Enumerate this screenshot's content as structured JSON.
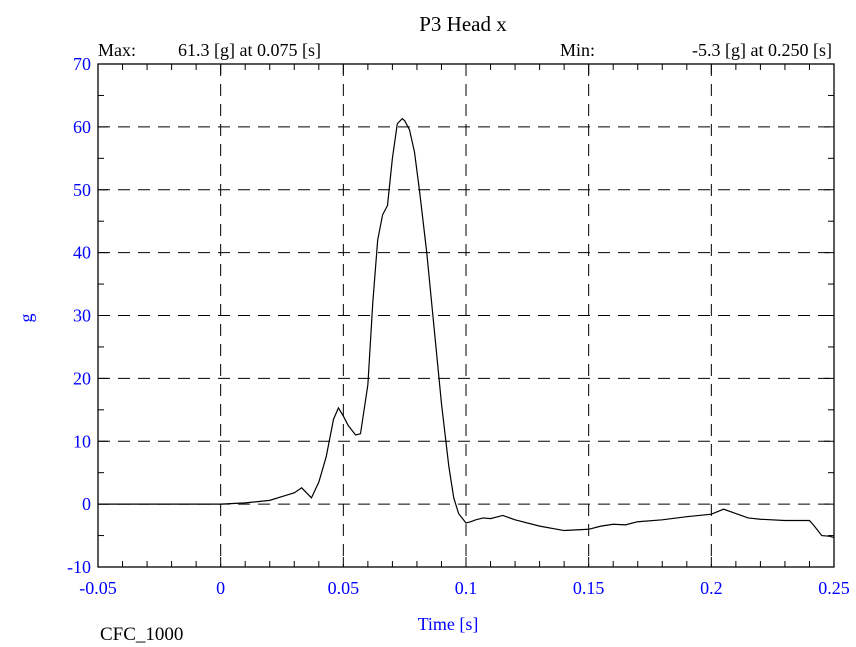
{
  "chart_data": {
    "type": "line",
    "title": "P3 Head x",
    "max_label": "Max:",
    "max_text": "61.3 [g] at 0.075 [s]",
    "min_label": "Min:",
    "min_text": "-5.3 [g] at 0.250 [s]",
    "xlabel": "Time [s]",
    "ylabel": "g",
    "footer": "CFC_1000",
    "xlim": [
      -0.05,
      0.25
    ],
    "ylim": [
      -10,
      70
    ],
    "xticks": [
      -0.05,
      0,
      0.05,
      0.1,
      0.15,
      0.2,
      0.25
    ],
    "xtick_labels": [
      "-0.05",
      "0",
      "0.05",
      "0.1",
      "0.15",
      "0.2",
      "0.25"
    ],
    "yticks": [
      -10,
      0,
      10,
      20,
      30,
      40,
      50,
      60,
      70
    ],
    "ytick_labels": [
      "-10",
      "0",
      "10",
      "20",
      "30",
      "40",
      "50",
      "60",
      "70"
    ],
    "grid": true,
    "colors": {
      "tick_labels": "#0000ff",
      "line": "#000000",
      "grid": "#000000"
    },
    "series": [
      {
        "x": [
          -0.05,
          -0.03,
          -0.01,
          0.0,
          0.01,
          0.02,
          0.025,
          0.03,
          0.033,
          0.035,
          0.037,
          0.04,
          0.043,
          0.046,
          0.048,
          0.05,
          0.052,
          0.055,
          0.057,
          0.06,
          0.062,
          0.064,
          0.066,
          0.068,
          0.07,
          0.072,
          0.074,
          0.075,
          0.077,
          0.079,
          0.081,
          0.084,
          0.087,
          0.09,
          0.093,
          0.095,
          0.097,
          0.099,
          0.1,
          0.102,
          0.104,
          0.107,
          0.11,
          0.115,
          0.12,
          0.13,
          0.14,
          0.15,
          0.155,
          0.16,
          0.165,
          0.17,
          0.18,
          0.19,
          0.2,
          0.205,
          0.21,
          0.215,
          0.22,
          0.23,
          0.24,
          0.242,
          0.245,
          0.248,
          0.25
        ],
        "y": [
          0,
          0,
          0,
          0,
          0.2,
          0.6,
          1.2,
          1.8,
          2.6,
          1.8,
          1.0,
          3.5,
          7.5,
          13.5,
          15.3,
          14.0,
          12.5,
          11.0,
          11.2,
          19.0,
          32.0,
          42.0,
          46.0,
          47.5,
          55.0,
          60.5,
          61.3,
          61.0,
          59.5,
          56.0,
          50.0,
          40.0,
          28.0,
          16.0,
          6.0,
          1.0,
          -1.5,
          -2.5,
          -3.0,
          -2.8,
          -2.5,
          -2.2,
          -2.3,
          -1.8,
          -2.5,
          -3.5,
          -4.2,
          -4.0,
          -3.5,
          -3.2,
          -3.3,
          -2.8,
          -2.5,
          -2.0,
          -1.6,
          -0.8,
          -1.5,
          -2.2,
          -2.4,
          -2.6,
          -2.6,
          -3.5,
          -5.0,
          -5.1,
          -5.3
        ]
      }
    ]
  }
}
